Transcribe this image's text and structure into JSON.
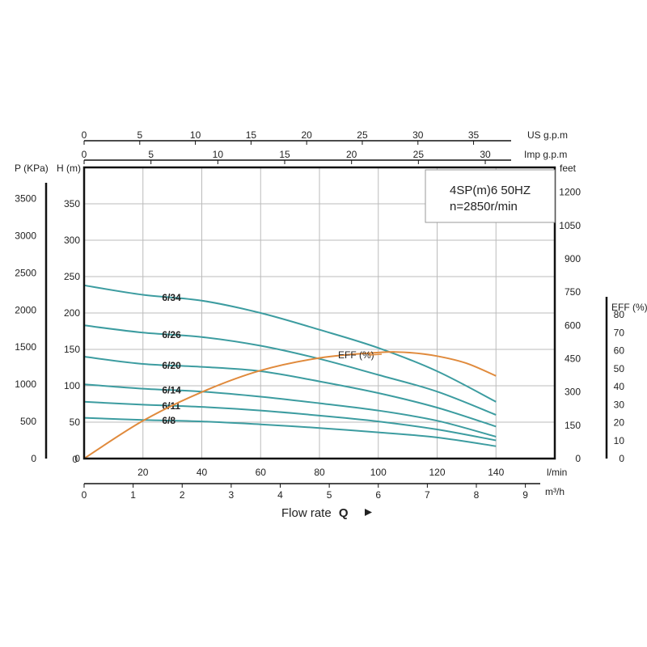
{
  "chart_data": {
    "type": "line",
    "title_lines": [
      "4SP(m)6  50HZ",
      "n=2850r/min"
    ],
    "xlabel": "Flow rate",
    "xlabel_symbol": "Q",
    "x_axis_lpm": {
      "unit": "l/min",
      "range": [
        0,
        160
      ],
      "ticks": [
        20,
        40,
        60,
        80,
        100,
        120,
        140
      ],
      "zero_label": "0"
    },
    "x_axis_m3h": {
      "unit": "m³/h",
      "range": [
        0,
        9.6
      ],
      "ticks": [
        0,
        1,
        2,
        3,
        4,
        5,
        6,
        7,
        8,
        9
      ]
    },
    "x_axis_usgpm": {
      "unit": "US g.p.m",
      "range": [
        0,
        42.3
      ],
      "ticks": [
        0,
        5,
        10,
        15,
        20,
        25,
        30,
        35
      ]
    },
    "x_axis_impgpm": {
      "unit": "Imp g.p.m",
      "range": [
        0,
        35.2
      ],
      "ticks": [
        0,
        5,
        10,
        15,
        20,
        25,
        30
      ]
    },
    "y_axis_head": {
      "unit": "H (m)",
      "range": [
        0,
        400
      ],
      "ticks": [
        0,
        50,
        100,
        150,
        200,
        250,
        300,
        350
      ]
    },
    "y_axis_pressure": {
      "unit": "P (KPa)",
      "range": [
        0,
        3920
      ],
      "ticks": [
        0,
        500,
        1000,
        1500,
        2000,
        2500,
        3000,
        3500
      ]
    },
    "y_axis_feet": {
      "unit": "feet",
      "range": [
        0,
        1312
      ],
      "ticks": [
        0,
        150,
        300,
        450,
        600,
        750,
        900,
        1050,
        1200
      ]
    },
    "y_axis_eff": {
      "unit": "EFF (%)",
      "range": [
        0,
        90
      ],
      "ticks": [
        0,
        10,
        20,
        30,
        40,
        50,
        60,
        70,
        80
      ]
    },
    "grid": true,
    "series": [
      {
        "name": "6/34",
        "color": "#3c9ca0",
        "x": [
          0,
          20,
          40,
          60,
          80,
          100,
          120,
          140
        ],
        "y": [
          238,
          225,
          217,
          200,
          177,
          152,
          120,
          78
        ]
      },
      {
        "name": "6/26",
        "color": "#3c9ca0",
        "x": [
          0,
          20,
          40,
          60,
          80,
          100,
          120,
          140
        ],
        "y": [
          183,
          173,
          167,
          155,
          137,
          115,
          92,
          60
        ]
      },
      {
        "name": "6/20",
        "color": "#3c9ca0",
        "x": [
          0,
          20,
          40,
          60,
          80,
          100,
          120,
          140
        ],
        "y": [
          140,
          130,
          126,
          120,
          106,
          90,
          70,
          44
        ]
      },
      {
        "name": "6/14",
        "color": "#3c9ca0",
        "x": [
          0,
          20,
          40,
          60,
          80,
          100,
          120,
          140
        ],
        "y": [
          102,
          96,
          92,
          85,
          76,
          66,
          52,
          30
        ]
      },
      {
        "name": "6/11",
        "color": "#3c9ca0",
        "x": [
          0,
          20,
          40,
          60,
          80,
          100,
          120,
          140
        ],
        "y": [
          78,
          74,
          71,
          66,
          59,
          51,
          40,
          25
        ]
      },
      {
        "name": "6/8",
        "color": "#3c9ca0",
        "x": [
          0,
          20,
          40,
          60,
          80,
          100,
          120,
          140
        ],
        "y": [
          56,
          53,
          51,
          47,
          42,
          36,
          29,
          17
        ]
      }
    ],
    "efficiency": {
      "name": "EFF (%)",
      "color": "#e08a3c",
      "x": [
        0,
        20,
        40,
        60,
        80,
        100,
        110,
        120,
        130,
        140
      ],
      "y": [
        0,
        21,
        37,
        49,
        56,
        59,
        59,
        57,
        53,
        46
      ]
    }
  }
}
